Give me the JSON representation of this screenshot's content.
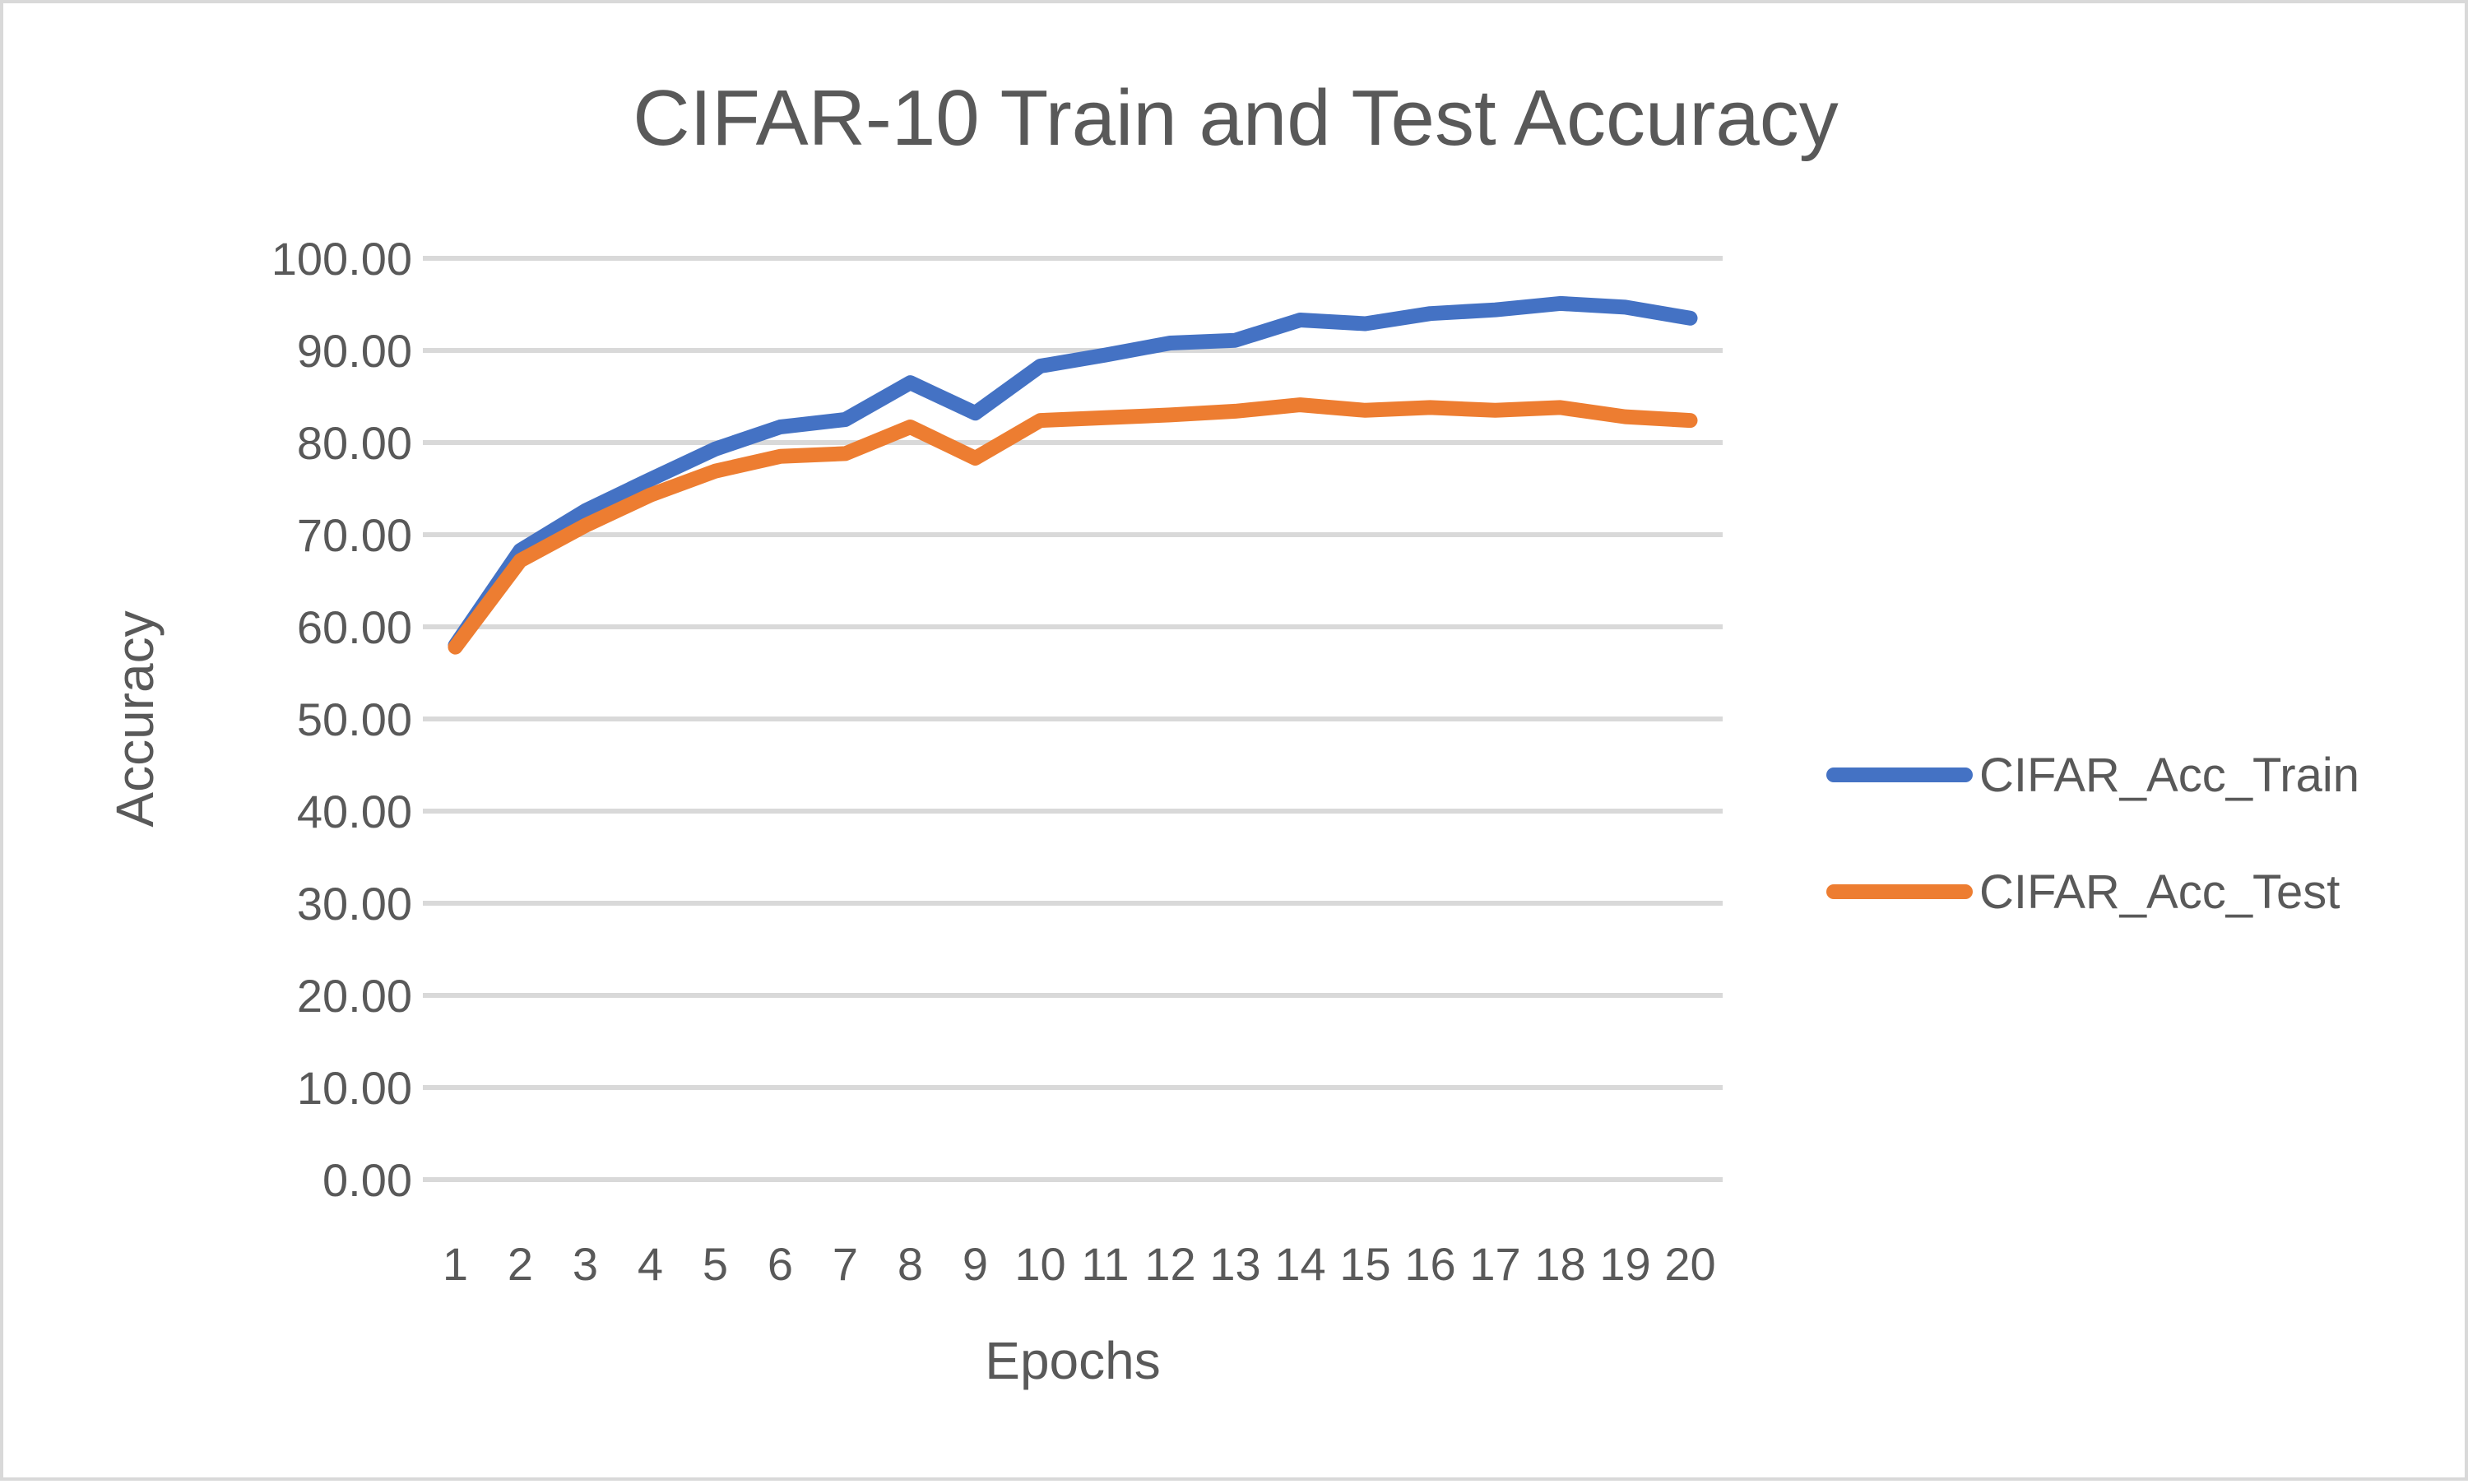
{
  "chart_data": {
    "type": "line",
    "title": "CIFAR-10 Train and Test Accuracy",
    "xlabel": "Epochs",
    "ylabel": "Accuracy",
    "categories": [
      "1",
      "2",
      "3",
      "4",
      "5",
      "6",
      "7",
      "8",
      "9",
      "10",
      "11",
      "12",
      "13",
      "14",
      "15",
      "16",
      "17",
      "18",
      "19",
      "20"
    ],
    "y_ticks": [
      "0.00",
      "10.00",
      "20.00",
      "30.00",
      "40.00",
      "50.00",
      "60.00",
      "70.00",
      "80.00",
      "90.00",
      "100.00"
    ],
    "ylim": [
      0,
      100
    ],
    "grid": true,
    "legend_position": "right",
    "series": [
      {
        "name": "CIFAR_Acc_Train",
        "color": "#4472c4",
        "values": [
          58.0,
          68.3,
          72.6,
          76.0,
          79.3,
          81.7,
          82.5,
          86.5,
          83.2,
          88.3,
          89.5,
          90.8,
          91.1,
          93.3,
          92.9,
          94.0,
          94.4,
          95.1,
          94.7,
          93.5
        ]
      },
      {
        "name": "CIFAR_Acc_Test",
        "color": "#ed7d31",
        "values": [
          57.8,
          67.2,
          71.0,
          74.3,
          76.9,
          78.5,
          78.8,
          81.7,
          78.3,
          82.4,
          82.7,
          83.0,
          83.4,
          84.1,
          83.5,
          83.8,
          83.5,
          83.8,
          82.8,
          82.4
        ]
      }
    ]
  }
}
